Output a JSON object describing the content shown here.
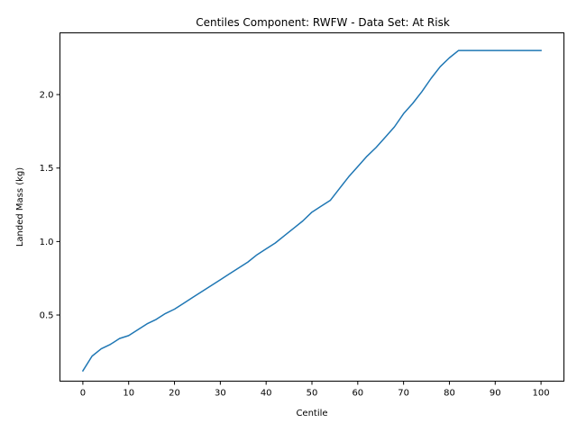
{
  "chart_data": {
    "type": "line",
    "title": "Centiles Component: RWFW - Data Set: At Risk",
    "xlabel": "Centile",
    "ylabel": "Landed Mass (kg)",
    "xlim": [
      -5,
      105
    ],
    "ylim": [
      0.05,
      2.42
    ],
    "grid": false,
    "x_ticks": [
      0,
      10,
      20,
      30,
      40,
      50,
      60,
      70,
      80,
      90,
      100
    ],
    "x_tick_labels": [
      "0",
      "10",
      "20",
      "30",
      "40",
      "50",
      "60",
      "70",
      "80",
      "90",
      "100"
    ],
    "y_ticks": [
      0.5,
      1.0,
      1.5,
      2.0
    ],
    "y_tick_labels": [
      "0.5",
      "1.0",
      "1.5",
      "2.0"
    ],
    "series": [
      {
        "color": "#1f77b4",
        "x": [
          0,
          2,
          4,
          6,
          8,
          10,
          12,
          14,
          16,
          18,
          20,
          22,
          24,
          26,
          28,
          30,
          32,
          34,
          36,
          38,
          40,
          42,
          44,
          46,
          48,
          50,
          52,
          54,
          56,
          58,
          60,
          62,
          64,
          66,
          68,
          70,
          72,
          74,
          76,
          78,
          80,
          82,
          84,
          86,
          88,
          90,
          92,
          94,
          96,
          98,
          100
        ],
        "y": [
          0.12,
          0.22,
          0.27,
          0.3,
          0.34,
          0.36,
          0.4,
          0.44,
          0.47,
          0.51,
          0.54,
          0.58,
          0.62,
          0.66,
          0.7,
          0.74,
          0.78,
          0.82,
          0.86,
          0.91,
          0.95,
          0.99,
          1.04,
          1.09,
          1.14,
          1.2,
          1.24,
          1.28,
          1.36,
          1.44,
          1.51,
          1.58,
          1.64,
          1.71,
          1.78,
          1.87,
          1.94,
          2.02,
          2.11,
          2.19,
          2.25,
          2.3,
          2.3,
          2.3,
          2.3,
          2.3,
          2.3,
          2.3,
          2.3,
          2.3,
          2.3
        ]
      }
    ]
  }
}
